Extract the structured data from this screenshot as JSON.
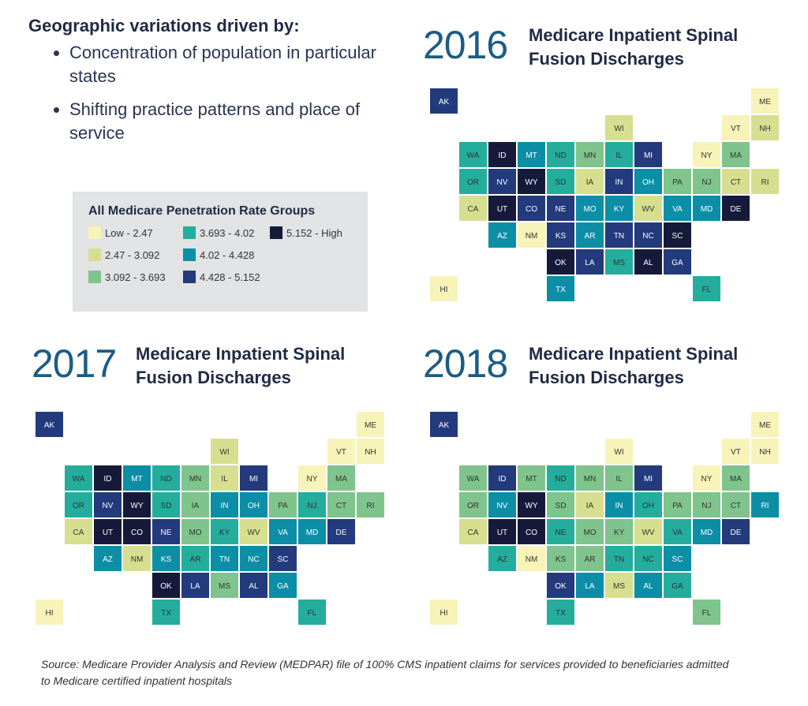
{
  "intro": {
    "heading": "Geographic variations driven by:",
    "bullets": [
      "Concentration of population in particular states",
      "Shifting practice patterns and place of service"
    ]
  },
  "legend": {
    "title": "All Medicare Penetration Rate Groups",
    "items": [
      {
        "label": "Low - 2.47",
        "color": "#f8f3b8"
      },
      {
        "label": "2.47 - 3.092",
        "color": "#d6df8f"
      },
      {
        "label": "3.092 - 3.693",
        "color": "#7fc48c"
      },
      {
        "label": "3.693 - 4.02",
        "color": "#24ad9d"
      },
      {
        "label": "4.02 - 4.428",
        "color": "#0b8ea6"
      },
      {
        "label": "4.428 - 5.152",
        "color": "#233a7d"
      },
      {
        "label": "5.152 - High",
        "color": "#161a3a"
      }
    ]
  },
  "maps": [
    {
      "year": "2016",
      "title": "Medicare Inpatient Spinal Fusion Discharges",
      "classes": {
        "WA": 3,
        "OR": 3,
        "CA": 1,
        "NV": 5,
        "ID": 6,
        "MT": 4,
        "WY": 6,
        "UT": 6,
        "CO": 5,
        "AZ": 4,
        "NM": 0,
        "ND": 3,
        "SD": 3,
        "NE": 5,
        "KS": 5,
        "OK": 6,
        "TX": 4,
        "MN": 2,
        "IA": 1,
        "MO": 4,
        "AR": 4,
        "LA": 5,
        "WI": 1,
        "IL": 3,
        "MI": 5,
        "IN": 5,
        "OH": 4,
        "KY": 4,
        "TN": 5,
        "MS": 3,
        "AL": 6,
        "GA": 5,
        "FL": 3,
        "SC": 6,
        "NC": 5,
        "VA": 4,
        "WV": 1,
        "PA": 2,
        "NY": 0,
        "ME": 0,
        "VT": 0,
        "NH": 1,
        "MA": 2,
        "CT": 1,
        "RI": 1,
        "NJ": 2,
        "DE": 6,
        "MD": 4,
        "AK": 5,
        "HI": 0
      }
    },
    {
      "year": "2017",
      "title": "Medicare Inpatient Spinal Fusion Discharges",
      "classes": {
        "WA": 3,
        "OR": 3,
        "CA": 1,
        "NV": 5,
        "ID": 6,
        "MT": 4,
        "WY": 6,
        "UT": 6,
        "CO": 6,
        "AZ": 4,
        "NM": 1,
        "ND": 3,
        "SD": 3,
        "NE": 5,
        "KS": 4,
        "OK": 6,
        "TX": 3,
        "MN": 2,
        "IA": 2,
        "MO": 2,
        "AR": 3,
        "LA": 5,
        "WI": 1,
        "IL": 1,
        "MI": 5,
        "IN": 4,
        "OH": 4,
        "KY": 3,
        "TN": 4,
        "MS": 2,
        "AL": 5,
        "GA": 4,
        "FL": 3,
        "SC": 5,
        "NC": 4,
        "VA": 4,
        "WV": 1,
        "PA": 2,
        "NY": 0,
        "ME": 0,
        "VT": 0,
        "NH": 0,
        "MA": 2,
        "CT": 2,
        "RI": 2,
        "NJ": 3,
        "DE": 5,
        "MD": 4,
        "AK": 5,
        "HI": 0
      }
    },
    {
      "year": "2018",
      "title": "Medicare Inpatient Spinal Fusion Discharges",
      "classes": {
        "WA": 2,
        "OR": 2,
        "CA": 1,
        "NV": 4,
        "ID": 5,
        "MT": 2,
        "WY": 6,
        "UT": 6,
        "CO": 6,
        "AZ": 3,
        "NM": 0,
        "ND": 3,
        "SD": 2,
        "NE": 3,
        "KS": 2,
        "OK": 5,
        "TX": 3,
        "MN": 2,
        "IA": 1,
        "MO": 2,
        "AR": 2,
        "LA": 4,
        "WI": 0,
        "IL": 2,
        "MI": 5,
        "IN": 4,
        "OH": 3,
        "KY": 2,
        "TN": 3,
        "MS": 1,
        "AL": 4,
        "GA": 3,
        "FL": 2,
        "SC": 4,
        "NC": 3,
        "VA": 3,
        "WV": 1,
        "PA": 2,
        "NY": 0,
        "ME": 0,
        "VT": 0,
        "NH": 0,
        "MA": 2,
        "CT": 2,
        "RI": 4,
        "NJ": 2,
        "DE": 5,
        "MD": 4,
        "AK": 5,
        "HI": 0
      }
    }
  ],
  "source": "Source: Medicare Provider Analysis and Review (MEDPAR) file of 100% CMS inpatient claims for services provided to beneficiaries admitted to Medicare certified inpatient hospitals"
}
